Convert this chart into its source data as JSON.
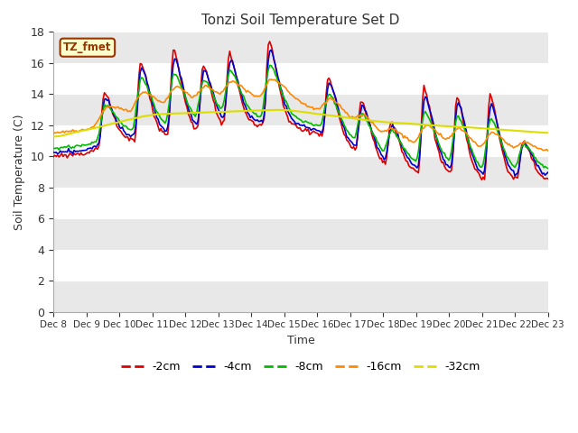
{
  "title": "Tonzi Soil Temperature Set D",
  "xlabel": "Time",
  "ylabel": "Soil Temperature (C)",
  "annotation_text": "TZ_fmet",
  "annotation_box_color": "#ffffcc",
  "annotation_border_color": "#993300",
  "annotation_text_color": "#993300",
  "ylim": [
    0,
    18
  ],
  "yticks": [
    0,
    2,
    4,
    6,
    8,
    10,
    12,
    14,
    16,
    18
  ],
  "colors": {
    "-2cm": "#dd0000",
    "-4cm": "#0000cc",
    "-8cm": "#00bb00",
    "-16cm": "#ff8800",
    "-32cm": "#dddd00"
  },
  "legend_labels": [
    "-2cm",
    "-4cm",
    "-8cm",
    "-16cm",
    "-32cm"
  ],
  "bg_color": "#e8e8e8",
  "n_points": 360,
  "xtick_labels": [
    "Dec 8",
    "Dec 9",
    "Dec 10",
    "Dec 11",
    "Dec 12",
    "Dec 13",
    "Dec 14",
    "Dec 15",
    "Dec 16",
    "Dec 17",
    "Dec 18",
    "Dec 19",
    "Dec 20",
    "Dec 21",
    "Dec 22",
    "Dec 23"
  ]
}
